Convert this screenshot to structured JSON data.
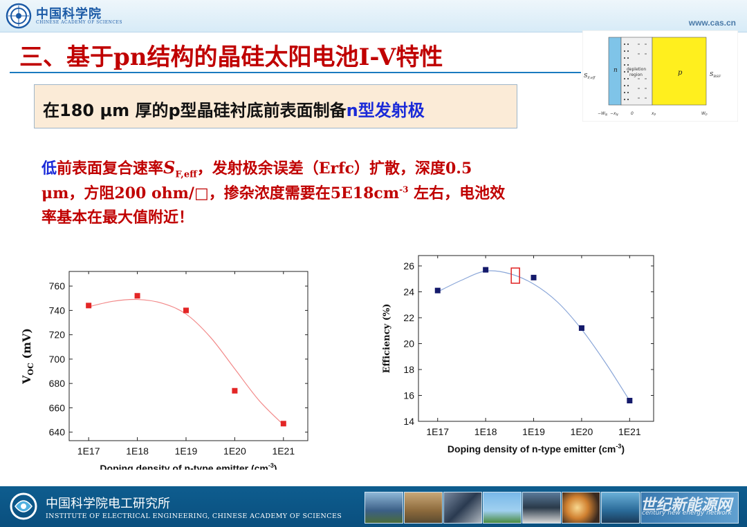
{
  "header": {
    "logo_cn": "中国科学院",
    "logo_en": "CHINESE ACADEMY OF SCIENCES",
    "website": "www.cas.cn"
  },
  "title": "三、基于pn结构的晶硅太阳电池I-V特性",
  "subtitle": {
    "prefix": "在180  μm 厚的p型晶硅衬底前表面制备",
    "highlight": "n型发射极"
  },
  "paragraph": {
    "line1_blue": "低",
    "line1_a": "前表面复合速率",
    "line1_sym": "S",
    "line1_sub": "F,eff",
    "line1_b": "，发射极余误差（Erfc）扩散，深度0.5",
    "line2_a": "μm，方阻200 ohm/□，掺杂浓度需要在5E18cm",
    "line2_sup": "-3",
    "line2_b": " 左右，电池效",
    "line3": "率基本在最大值附近！"
  },
  "diagram": {
    "left_label": "S",
    "left_sub": "F,eff",
    "right_label": "S",
    "right_sub": "BSF",
    "n_label": "n",
    "p_label": "p",
    "depletion_label_1": "depletion",
    "depletion_label_2": "region",
    "axis_labels": [
      "−W",
      "−x",
      "0",
      "x",
      "W"
    ],
    "axis_subs": [
      "N",
      "N",
      "",
      "P",
      "P"
    ]
  },
  "chart_data": [
    {
      "type": "scatter",
      "categories": [
        "1E17",
        "1E18",
        "1E19",
        "1E20",
        "1E21"
      ],
      "x": [
        17,
        18,
        19,
        20,
        21
      ],
      "values": [
        744,
        752,
        740,
        674,
        647
      ],
      "xlabel": "Doping density of n-type emitter (cm",
      "xlabel_sup": "-3",
      "xlabel_end": ")",
      "ylabel": "V",
      "ylabel_sub": "OC",
      "ylabel_end": " (mV)",
      "yticks": [
        "640",
        "660",
        "680",
        "700",
        "720",
        "740",
        "760"
      ],
      "ylim": [
        633,
        772
      ],
      "marker_color": "#e32626",
      "fit_color": "#f28888",
      "fit_curve": [
        [
          17,
          743
        ],
        [
          17.5,
          747.5
        ],
        [
          18,
          749
        ],
        [
          18.5,
          746
        ],
        [
          19,
          737
        ],
        [
          19.5,
          718
        ],
        [
          20,
          692
        ],
        [
          20.5,
          666
        ],
        [
          21,
          646
        ]
      ]
    },
    {
      "type": "scatter",
      "categories": [
        "1E17",
        "1E18",
        "1E19",
        "1E20",
        "1E21"
      ],
      "x": [
        17,
        18,
        19,
        20,
        21
      ],
      "values": [
        24.1,
        25.7,
        25.1,
        21.2,
        15.6
      ],
      "xlabel": "Doping density of n-type emitter (cm",
      "xlabel_sup": "-3",
      "xlabel_end": ")",
      "ylabel": "Efficiency (%)",
      "yticks": [
        "14",
        "16",
        "18",
        "20",
        "22",
        "24",
        "26"
      ],
      "ylim": [
        14,
        26.8
      ],
      "marker_color": "#141a6b",
      "fit_color": "#8aa6d8",
      "fit_curve": [
        [
          17,
          24.0
        ],
        [
          17.5,
          24.9
        ],
        [
          18,
          25.6
        ],
        [
          18.5,
          25.4
        ],
        [
          19,
          24.6
        ],
        [
          19.5,
          23.2
        ],
        [
          20,
          21.1
        ],
        [
          20.5,
          18.5
        ],
        [
          21,
          15.6
        ]
      ],
      "highlight_x": 18.62,
      "highlight_y": 25.25
    }
  ],
  "footer": {
    "cn": "中国科学院电工研究所",
    "en": "INSTITUTE OF ELECTRICAL ENGINEERING, CHINESE ACADEMY OF SCIENCES",
    "watermark_cn": "世纪新能源网",
    "watermark_en": "century new energy network"
  },
  "colors": {
    "title": "#c00000",
    "accent_blue": "#1a2ad8",
    "subtitle_bg": "#fbebd7",
    "footer_bg": "#0e5d8f"
  }
}
